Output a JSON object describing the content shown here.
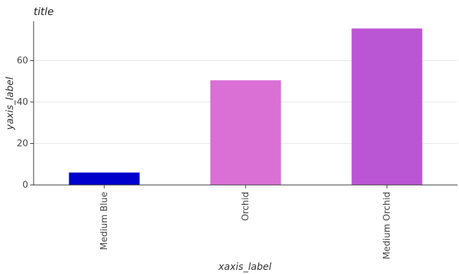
{
  "chart_data": {
    "type": "bar",
    "title": "title",
    "xlabel": "xaxis_label",
    "ylabel": "yaxis_label",
    "categories": [
      "Medium Blue",
      "Orchid",
      "Medium Orchid"
    ],
    "values": [
      6,
      50.5,
      75.5
    ],
    "colors": [
      "#0000cd",
      "#da70d6",
      "#ba55d3"
    ],
    "ylim": [
      0,
      79
    ],
    "yticks": [
      0,
      20,
      40,
      60
    ],
    "grid": true
  }
}
